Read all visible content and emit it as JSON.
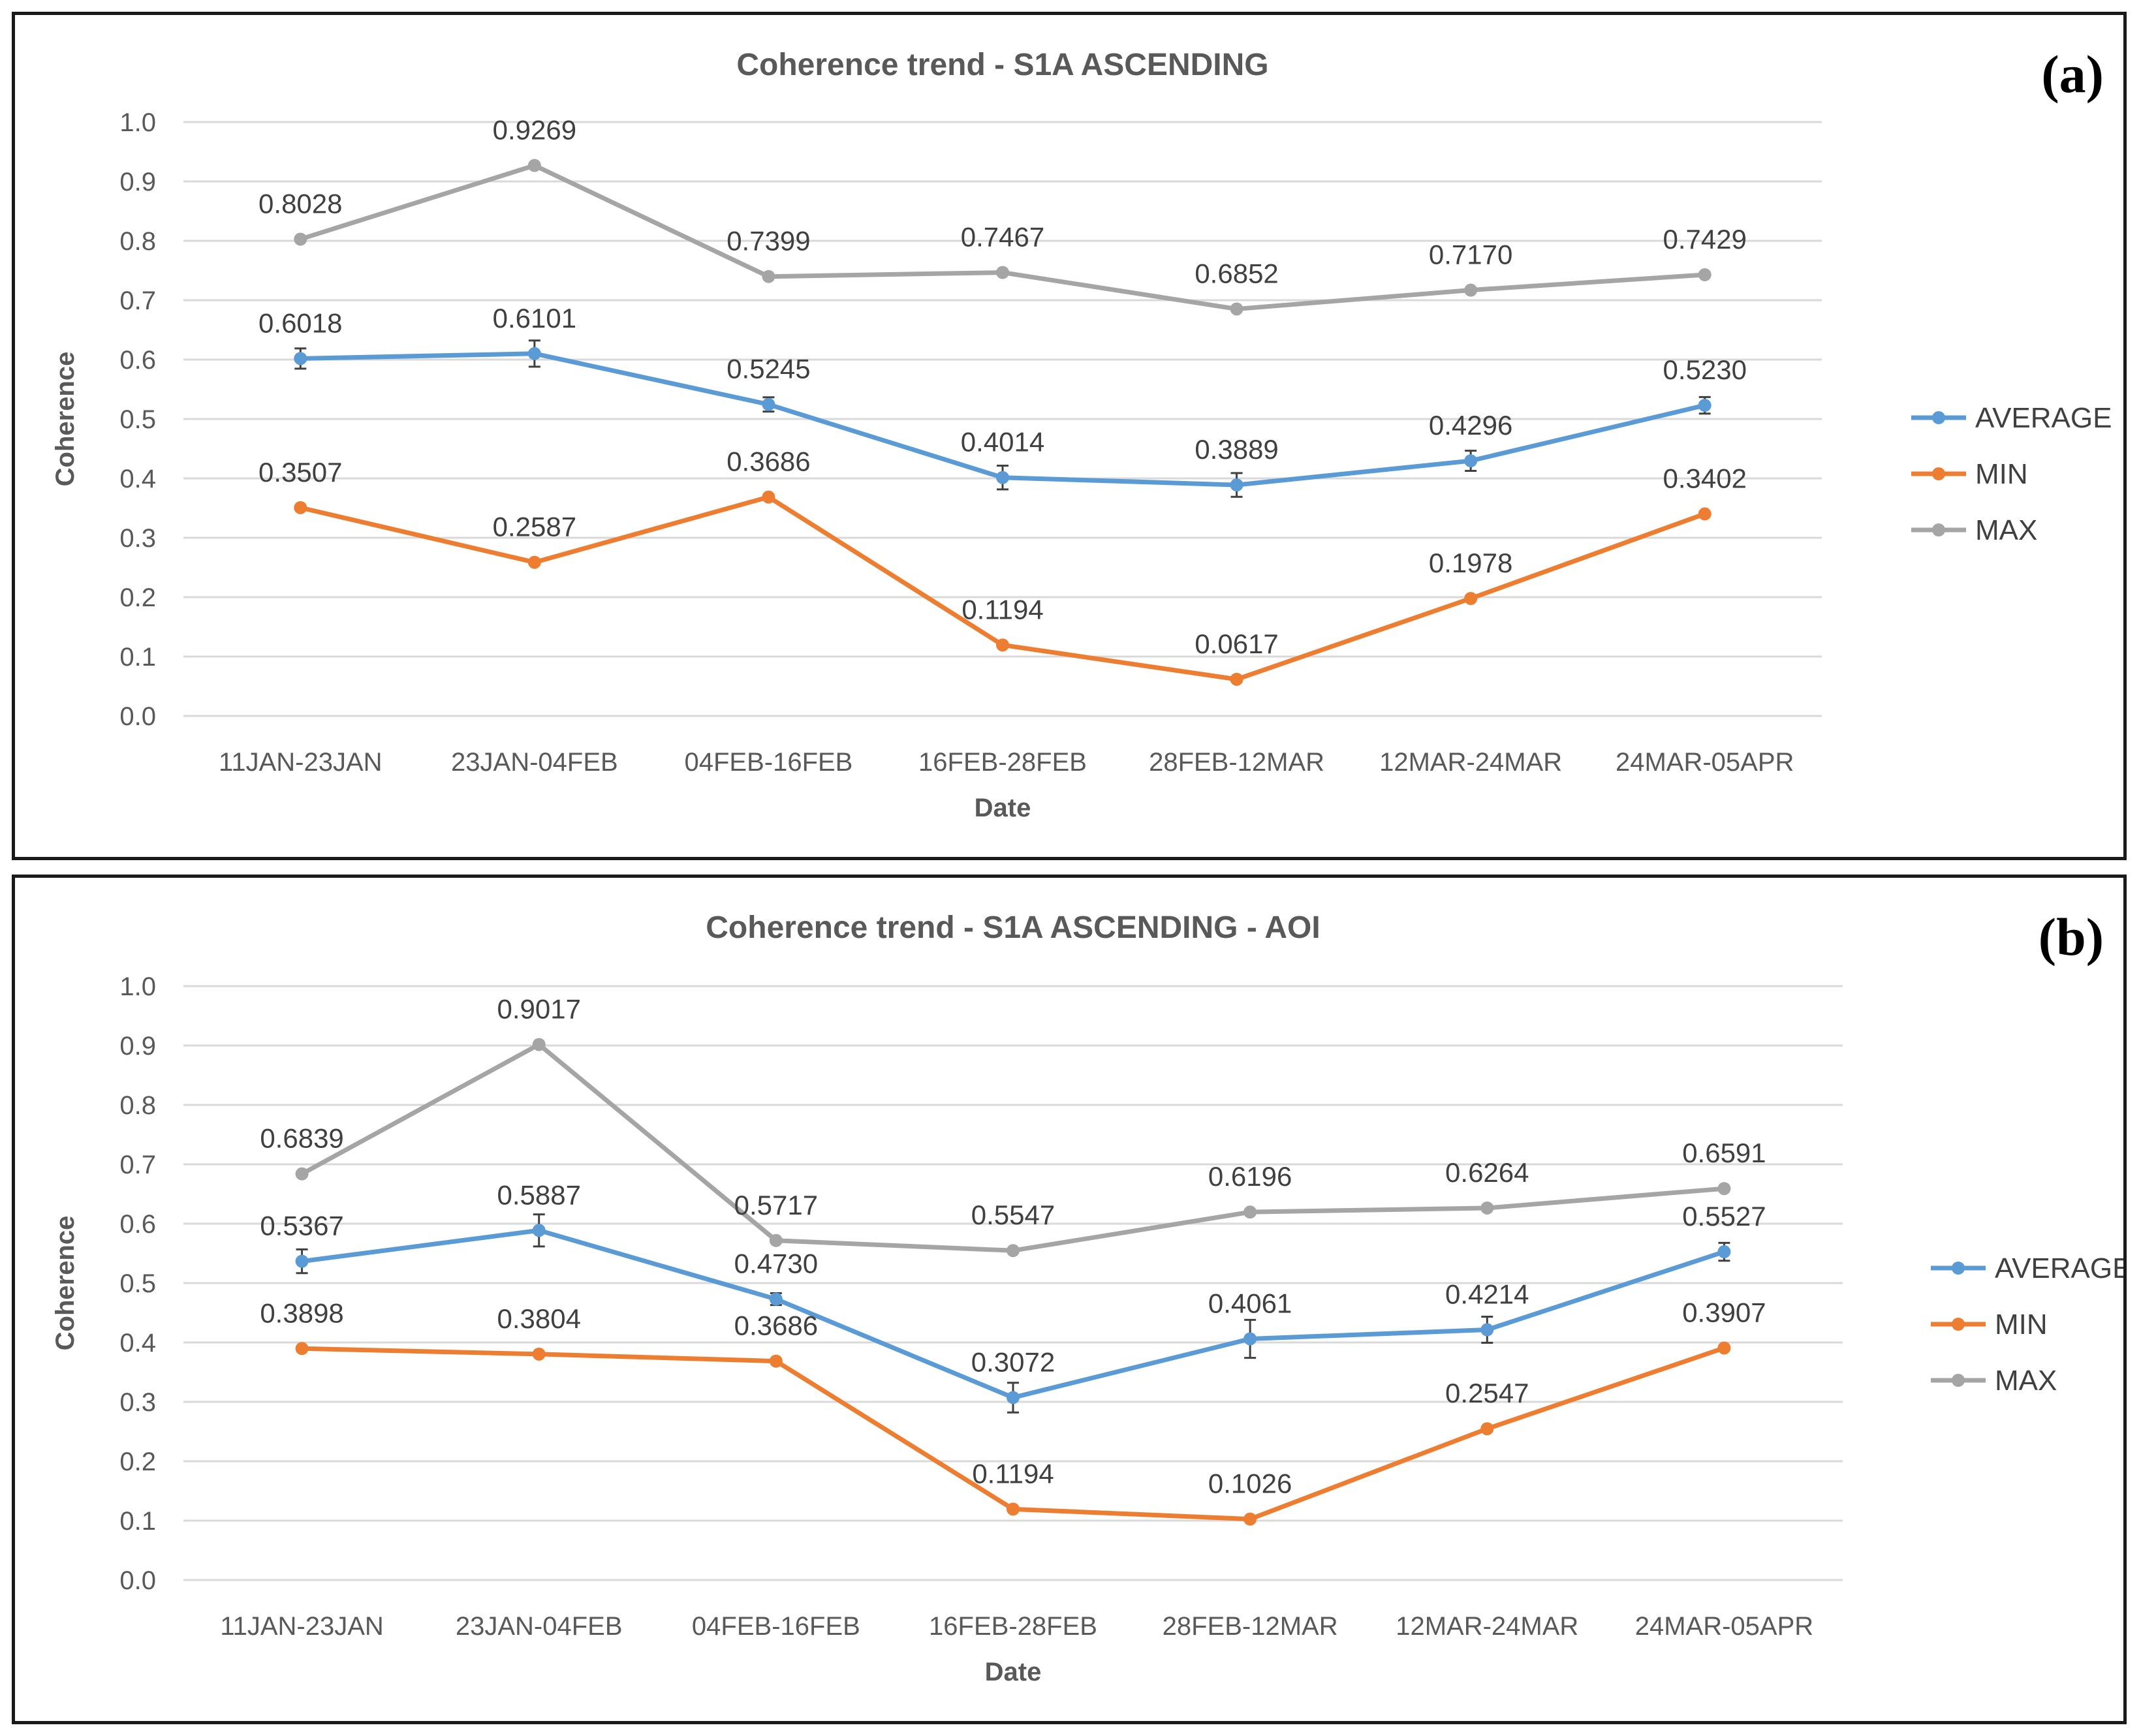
{
  "chart_data": [
    {
      "type": "line",
      "panel_label": "(a)",
      "title": "Coherence trend - S1A ASCENDING",
      "xlabel": "Date",
      "ylabel": "Coherence",
      "ylim": [
        0,
        1
      ],
      "y_ticks": [
        "0.0",
        "0.1",
        "0.2",
        "0.3",
        "0.4",
        "0.5",
        "0.6",
        "0.7",
        "0.8",
        "0.9",
        "1.0"
      ],
      "categories": [
        "11JAN-23JAN",
        "23JAN-04FEB",
        "04FEB-16FEB",
        "16FEB-28FEB",
        "28FEB-12MAR",
        "12MAR-24MAR",
        "24MAR-05APR"
      ],
      "legend_position": "right",
      "series": [
        {
          "name": "AVERAGE",
          "color": "#5B9BD5",
          "error_bars": true,
          "values": [
            0.6018,
            0.6101,
            0.5245,
            0.4014,
            0.3889,
            0.4296,
            0.523
          ],
          "labels": [
            "0.6018",
            "0.6101",
            "0.5245",
            "0.4014",
            "0.3889",
            "0.4296",
            "0.5230"
          ],
          "errors": [
            0.017,
            0.022,
            0.012,
            0.02,
            0.02,
            0.017,
            0.014
          ]
        },
        {
          "name": "MIN",
          "color": "#ED7D31",
          "error_bars": false,
          "values": [
            0.3507,
            0.2587,
            0.3686,
            0.1194,
            0.0617,
            0.1978,
            0.3402
          ],
          "labels": [
            "0.3507",
            "0.2587",
            "0.3686",
            "0.1194",
            "0.0617",
            "0.1978",
            "0.3402"
          ]
        },
        {
          "name": "MAX",
          "color": "#A5A5A5",
          "error_bars": false,
          "values": [
            0.8028,
            0.9269,
            0.7399,
            0.7467,
            0.6852,
            0.717,
            0.7429
          ],
          "labels": [
            "0.8028",
            "0.9269",
            "0.7399",
            "0.7467",
            "0.6852",
            "0.7170",
            "0.7429"
          ]
        }
      ]
    },
    {
      "type": "line",
      "panel_label": "(b)",
      "title": "Coherence trend - S1A ASCENDING - AOI",
      "xlabel": "Date",
      "ylabel": "Coherence",
      "ylim": [
        0,
        1
      ],
      "y_ticks": [
        "0.0",
        "0.1",
        "0.2",
        "0.3",
        "0.4",
        "0.5",
        "0.6",
        "0.7",
        "0.8",
        "0.9",
        "1.0"
      ],
      "categories": [
        "11JAN-23JAN",
        "23JAN-04FEB",
        "04FEB-16FEB",
        "16FEB-28FEB",
        "28FEB-12MAR",
        "12MAR-24MAR",
        "24MAR-05APR"
      ],
      "legend_position": "right",
      "series": [
        {
          "name": "AVERAGE",
          "color": "#5B9BD5",
          "error_bars": true,
          "values": [
            0.5367,
            0.5887,
            0.473,
            0.3072,
            0.4061,
            0.4214,
            0.5527
          ],
          "labels": [
            "0.5367",
            "0.5887",
            "0.4730",
            "0.3072",
            "0.4061",
            "0.4214",
            "0.5527"
          ],
          "errors": [
            0.02,
            0.027,
            0.01,
            0.025,
            0.032,
            0.022,
            0.015
          ]
        },
        {
          "name": "MIN",
          "color": "#ED7D31",
          "error_bars": false,
          "values": [
            0.3898,
            0.3804,
            0.3686,
            0.1194,
            0.1026,
            0.2547,
            0.3907
          ],
          "labels": [
            "0.3898",
            "0.3804",
            "0.3686",
            "0.1194",
            "0.1026",
            "0.2547",
            "0.3907"
          ]
        },
        {
          "name": "MAX",
          "color": "#A5A5A5",
          "error_bars": false,
          "values": [
            0.6839,
            0.9017,
            0.5717,
            0.5547,
            0.6196,
            0.6264,
            0.6591
          ],
          "labels": [
            "0.6839",
            "0.9017",
            "0.5717",
            "0.5547",
            "0.6196",
            "0.6264",
            "0.6591"
          ]
        }
      ]
    }
  ]
}
